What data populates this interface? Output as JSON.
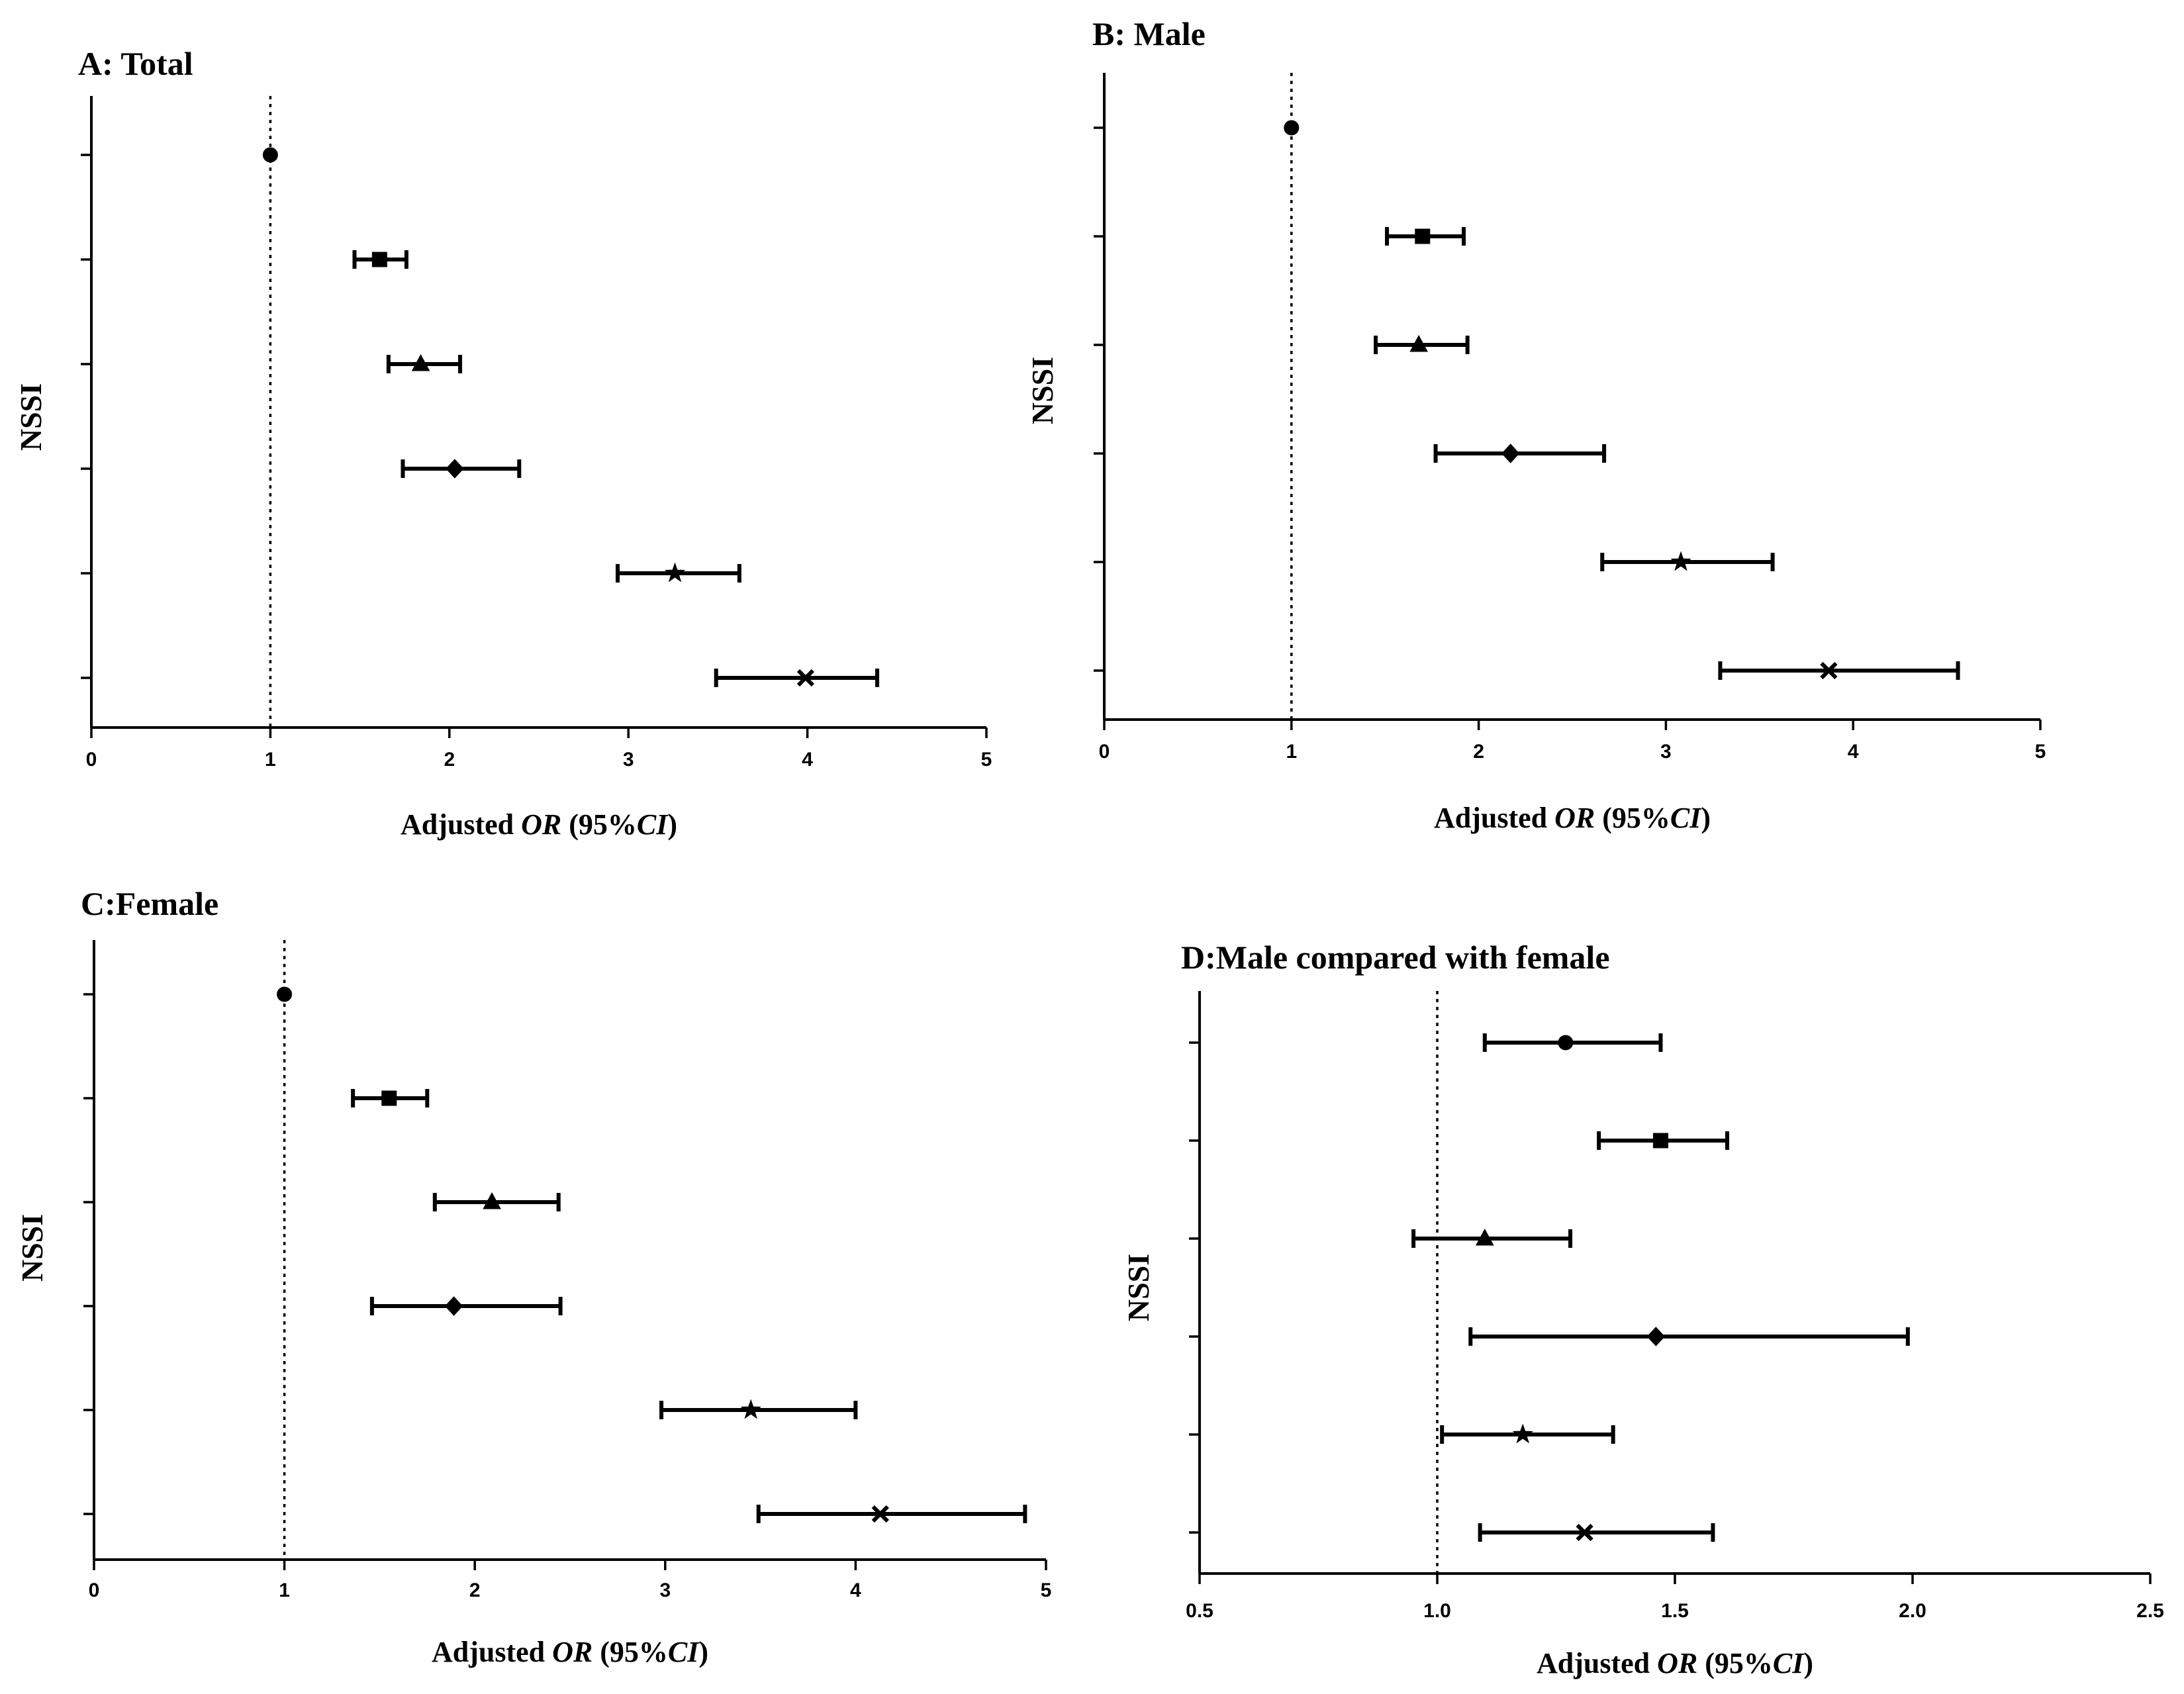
{
  "figure": {
    "ylabel_common": "NSSI"
  },
  "chart_data": [
    {
      "type": "forest",
      "id": "A",
      "title": "A: Total",
      "xlabel_prefix": "Adjusted ",
      "xlabel_or": "OR",
      "xlabel_mid": " (95%",
      "xlabel_ci": "CI",
      "xlabel_suffix": ")",
      "ylabel": "NSSI",
      "xlim": [
        0,
        5
      ],
      "xticks": [
        0,
        1,
        2,
        3,
        4,
        5
      ],
      "xtick_labels": [
        "0",
        "1",
        "2",
        "3",
        "4",
        "5"
      ],
      "reference_line": 1,
      "rows": [
        {
          "marker": "circle",
          "or": 1.0,
          "lo": null,
          "hi": null
        },
        {
          "marker": "square",
          "or": 1.61,
          "lo": 1.47,
          "hi": 1.76
        },
        {
          "marker": "triangle",
          "or": 1.84,
          "lo": 1.66,
          "hi": 2.06
        },
        {
          "marker": "diamond",
          "or": 2.03,
          "lo": 1.74,
          "hi": 2.39
        },
        {
          "marker": "star",
          "or": 3.26,
          "lo": 2.94,
          "hi": 3.62
        },
        {
          "marker": "x",
          "or": 3.99,
          "lo": 3.49,
          "hi": 4.39
        }
      ]
    },
    {
      "type": "forest",
      "id": "B",
      "title": "B:  Male",
      "xlabel_prefix": "Adjusted ",
      "xlabel_or": "OR",
      "xlabel_mid": " (95%",
      "xlabel_ci": "CI",
      "xlabel_suffix": ")",
      "ylabel": "NSSI",
      "xlim": [
        0,
        5
      ],
      "xticks": [
        0,
        1,
        2,
        3,
        4,
        5
      ],
      "xtick_labels": [
        "0",
        "1",
        "2",
        "3",
        "4",
        "5"
      ],
      "reference_line": 1,
      "rows": [
        {
          "marker": "circle",
          "or": 1.0,
          "lo": null,
          "hi": null
        },
        {
          "marker": "square",
          "or": 1.7,
          "lo": 1.51,
          "hi": 1.92
        },
        {
          "marker": "triangle",
          "or": 1.68,
          "lo": 1.45,
          "hi": 1.94
        },
        {
          "marker": "diamond",
          "or": 2.17,
          "lo": 1.77,
          "hi": 2.67
        },
        {
          "marker": "star",
          "or": 3.08,
          "lo": 2.66,
          "hi": 3.57
        },
        {
          "marker": "x",
          "or": 3.87,
          "lo": 3.29,
          "hi": 4.56
        }
      ]
    },
    {
      "type": "forest",
      "id": "C",
      "title": "C:Female",
      "xlabel_prefix": "Adjusted ",
      "xlabel_or": "OR",
      "xlabel_mid": " (95%",
      "xlabel_ci": "CI",
      "xlabel_suffix": ")",
      "ylabel": "NSSI",
      "xlim": [
        0,
        5
      ],
      "xticks": [
        0,
        1,
        2,
        3,
        4,
        5
      ],
      "xtick_labels": [
        "0",
        "1",
        "2",
        "3",
        "4",
        "5"
      ],
      "reference_line": 1,
      "rows": [
        {
          "marker": "circle",
          "or": 1.0,
          "lo": null,
          "hi": null
        },
        {
          "marker": "square",
          "or": 1.55,
          "lo": 1.36,
          "hi": 1.75
        },
        {
          "marker": "triangle",
          "or": 2.09,
          "lo": 1.79,
          "hi": 2.44
        },
        {
          "marker": "diamond",
          "or": 1.89,
          "lo": 1.46,
          "hi": 2.45
        },
        {
          "marker": "star",
          "or": 3.45,
          "lo": 2.98,
          "hi": 4.0
        },
        {
          "marker": "x",
          "or": 4.13,
          "lo": 3.49,
          "hi": 4.89
        }
      ]
    },
    {
      "type": "forest",
      "id": "D",
      "title": "D:Male compared with female",
      "xlabel_prefix": "Adjusted ",
      "xlabel_or": "OR",
      "xlabel_mid": " (95%",
      "xlabel_ci": "CI",
      "xlabel_suffix": ")",
      "ylabel": "NSSI",
      "xlim": [
        0.5,
        2.5
      ],
      "xticks": [
        0.5,
        1.0,
        1.5,
        2.0,
        2.5
      ],
      "xtick_labels": [
        "0.5",
        "1.0",
        "1.5",
        "2.0",
        "2.5"
      ],
      "reference_line": 1.0,
      "rows": [
        {
          "marker": "circle",
          "or": 1.27,
          "lo": 1.1,
          "hi": 1.47
        },
        {
          "marker": "square",
          "or": 1.47,
          "lo": 1.34,
          "hi": 1.61
        },
        {
          "marker": "triangle",
          "or": 1.1,
          "lo": 0.95,
          "hi": 1.28
        },
        {
          "marker": "diamond",
          "or": 1.46,
          "lo": 1.07,
          "hi": 1.99
        },
        {
          "marker": "star",
          "or": 1.18,
          "lo": 1.01,
          "hi": 1.37
        },
        {
          "marker": "x",
          "or": 1.31,
          "lo": 1.09,
          "hi": 1.58
        }
      ]
    }
  ]
}
